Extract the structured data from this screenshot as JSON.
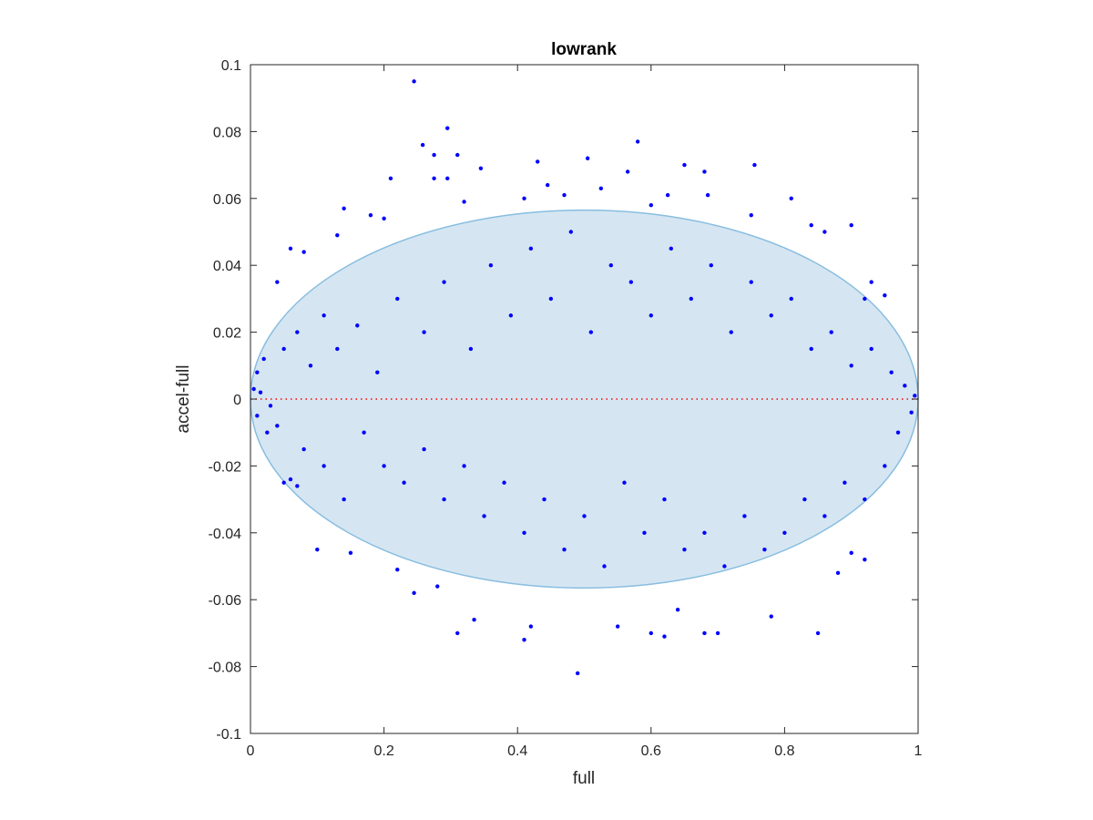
{
  "chart_data": {
    "type": "scatter",
    "title": "lowrank",
    "xlabel": "full",
    "ylabel": "accel-full",
    "xlim": [
      0,
      1
    ],
    "ylim": [
      -0.1,
      0.1
    ],
    "xticks": [
      "0",
      "0.2",
      "0.4",
      "0.6",
      "0.8",
      "1"
    ],
    "xtick_values": [
      0,
      0.2,
      0.4,
      0.6,
      0.8,
      1
    ],
    "yticks": [
      "-0.1",
      "-0.08",
      "-0.06",
      "-0.04",
      "-0.02",
      "0",
      "0.02",
      "0.04",
      "0.06",
      "0.08",
      "0.1"
    ],
    "ytick_values": [
      -0.1,
      -0.08,
      -0.06,
      -0.04,
      -0.02,
      0,
      0.02,
      0.04,
      0.06,
      0.08,
      0.1
    ],
    "grid": false,
    "reference_line": {
      "y": 0,
      "color": "#ff0000",
      "style": "dotted"
    },
    "ellipse": {
      "center_x": 0.5,
      "center_y": 0.0,
      "radius_x": 0.5,
      "radius_y": 0.0565,
      "fill": "#d5e6f2",
      "stroke": "#88bde0"
    },
    "point_color": "#0000ff",
    "series": [
      {
        "values": [
          [
            0.245,
            0.095
          ],
          [
            0.295,
            0.081
          ],
          [
            0.258,
            0.076
          ],
          [
            0.31,
            0.073
          ],
          [
            0.275,
            0.073
          ],
          [
            0.58,
            0.077
          ],
          [
            0.505,
            0.072
          ],
          [
            0.43,
            0.071
          ],
          [
            0.755,
            0.07
          ],
          [
            0.65,
            0.07
          ],
          [
            0.345,
            0.069
          ],
          [
            0.565,
            0.068
          ],
          [
            0.68,
            0.068
          ],
          [
            0.21,
            0.066
          ],
          [
            0.275,
            0.066
          ],
          [
            0.295,
            0.066
          ],
          [
            0.525,
            0.063
          ],
          [
            0.445,
            0.064
          ],
          [
            0.625,
            0.061
          ],
          [
            0.685,
            0.061
          ],
          [
            0.81,
            0.06
          ],
          [
            0.47,
            0.061
          ],
          [
            0.41,
            0.06
          ],
          [
            0.32,
            0.059
          ],
          [
            0.14,
            0.057
          ],
          [
            0.6,
            0.058
          ],
          [
            0.18,
            0.055
          ],
          [
            0.9,
            0.052
          ],
          [
            0.84,
            0.052
          ],
          [
            0.75,
            0.055
          ],
          [
            0.2,
            0.054
          ],
          [
            0.13,
            0.049
          ],
          [
            0.86,
            0.05
          ],
          [
            0.06,
            0.045
          ],
          [
            0.08,
            0.044
          ],
          [
            0.04,
            0.035
          ],
          [
            0.93,
            0.035
          ],
          [
            0.95,
            0.031
          ],
          [
            0.92,
            0.03
          ],
          [
            0.02,
            0.012
          ],
          [
            0.01,
            0.008
          ],
          [
            0.005,
            0.003
          ],
          [
            0.015,
            0.002
          ],
          [
            0.03,
            -0.002
          ],
          [
            0.01,
            -0.005
          ],
          [
            0.025,
            -0.01
          ],
          [
            0.05,
            0.015
          ],
          [
            0.07,
            0.02
          ],
          [
            0.09,
            0.01
          ],
          [
            0.11,
            0.025
          ],
          [
            0.13,
            0.015
          ],
          [
            0.16,
            0.022
          ],
          [
            0.19,
            0.008
          ],
          [
            0.22,
            0.03
          ],
          [
            0.26,
            0.02
          ],
          [
            0.29,
            0.035
          ],
          [
            0.33,
            0.015
          ],
          [
            0.36,
            0.04
          ],
          [
            0.39,
            0.025
          ],
          [
            0.42,
            0.045
          ],
          [
            0.45,
            0.03
          ],
          [
            0.48,
            0.05
          ],
          [
            0.51,
            0.02
          ],
          [
            0.54,
            0.04
          ],
          [
            0.57,
            0.035
          ],
          [
            0.6,
            0.025
          ],
          [
            0.63,
            0.045
          ],
          [
            0.66,
            0.03
          ],
          [
            0.69,
            0.04
          ],
          [
            0.72,
            0.02
          ],
          [
            0.75,
            0.035
          ],
          [
            0.78,
            0.025
          ],
          [
            0.81,
            0.03
          ],
          [
            0.84,
            0.015
          ],
          [
            0.87,
            0.02
          ],
          [
            0.9,
            0.01
          ],
          [
            0.93,
            0.015
          ],
          [
            0.96,
            0.008
          ],
          [
            0.98,
            0.004
          ],
          [
            0.995,
            0.001
          ],
          [
            0.99,
            -0.004
          ],
          [
            0.97,
            -0.01
          ],
          [
            0.95,
            -0.02
          ],
          [
            0.92,
            -0.03
          ],
          [
            0.89,
            -0.025
          ],
          [
            0.86,
            -0.035
          ],
          [
            0.83,
            -0.03
          ],
          [
            0.8,
            -0.04
          ],
          [
            0.77,
            -0.045
          ],
          [
            0.74,
            -0.035
          ],
          [
            0.71,
            -0.05
          ],
          [
            0.68,
            -0.04
          ],
          [
            0.65,
            -0.045
          ],
          [
            0.62,
            -0.03
          ],
          [
            0.59,
            -0.04
          ],
          [
            0.56,
            -0.025
          ],
          [
            0.53,
            -0.05
          ],
          [
            0.5,
            -0.035
          ],
          [
            0.47,
            -0.045
          ],
          [
            0.44,
            -0.03
          ],
          [
            0.41,
            -0.04
          ],
          [
            0.38,
            -0.025
          ],
          [
            0.35,
            -0.035
          ],
          [
            0.32,
            -0.02
          ],
          [
            0.29,
            -0.03
          ],
          [
            0.26,
            -0.015
          ],
          [
            0.23,
            -0.025
          ],
          [
            0.2,
            -0.02
          ],
          [
            0.17,
            -0.01
          ],
          [
            0.14,
            -0.03
          ],
          [
            0.11,
            -0.02
          ],
          [
            0.08,
            -0.015
          ],
          [
            0.05,
            -0.025
          ],
          [
            0.04,
            -0.008
          ],
          [
            0.1,
            -0.045
          ],
          [
            0.22,
            -0.051
          ],
          [
            0.245,
            -0.058
          ],
          [
            0.28,
            -0.056
          ],
          [
            0.31,
            -0.07
          ],
          [
            0.335,
            -0.066
          ],
          [
            0.41,
            -0.072
          ],
          [
            0.42,
            -0.068
          ],
          [
            0.49,
            -0.082
          ],
          [
            0.55,
            -0.068
          ],
          [
            0.6,
            -0.07
          ],
          [
            0.62,
            -0.071
          ],
          [
            0.64,
            -0.063
          ],
          [
            0.68,
            -0.07
          ],
          [
            0.7,
            -0.07
          ],
          [
            0.78,
            -0.065
          ],
          [
            0.85,
            -0.07
          ],
          [
            0.9,
            -0.046
          ],
          [
            0.92,
            -0.048
          ],
          [
            0.88,
            -0.052
          ],
          [
            0.15,
            -0.046
          ],
          [
            0.07,
            -0.026
          ],
          [
            0.06,
            -0.024
          ]
        ]
      }
    ]
  }
}
